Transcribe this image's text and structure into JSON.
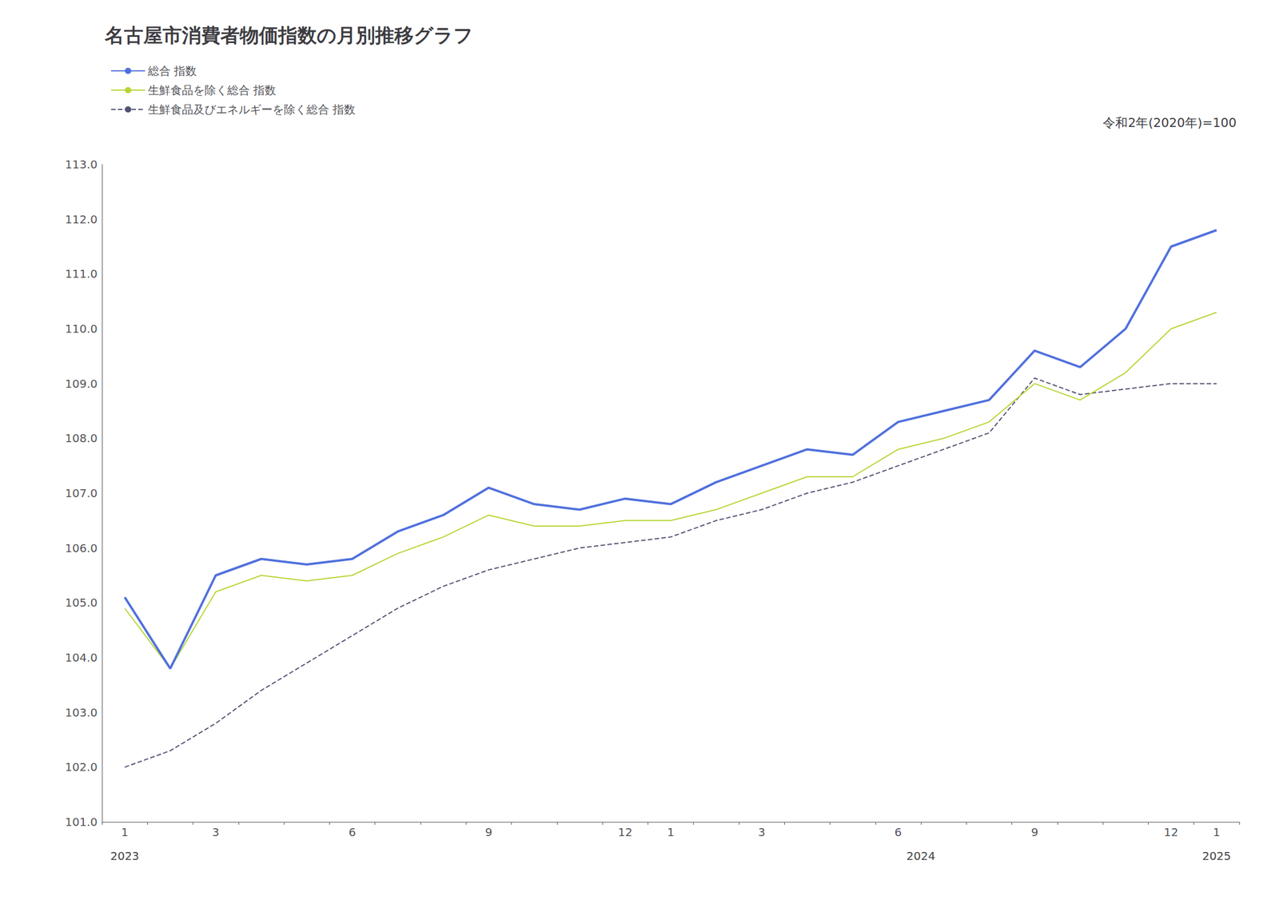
{
  "chart_data": {
    "type": "line",
    "title": "名古屋市消費者物価指数の月別推移グラフ",
    "subtitle": "令和2年(2020年)=100",
    "categories": [
      "1",
      null,
      "3",
      null,
      null,
      "6",
      null,
      null,
      "9",
      null,
      null,
      "12",
      "1",
      null,
      "3",
      null,
      null,
      "6",
      null,
      null,
      "9",
      null,
      null,
      "12",
      "1"
    ],
    "series": [
      {
        "name": "総合 指数",
        "line_style": "solid",
        "values": [
          105.1,
          103.8,
          105.5,
          105.8,
          105.7,
          105.8,
          106.3,
          106.6,
          107.1,
          106.8,
          106.7,
          106.9,
          106.8,
          107.2,
          107.5,
          107.8,
          107.7,
          108.3,
          108.5,
          108.7,
          109.6,
          109.3,
          110.0,
          111.5,
          111.8
        ]
      },
      {
        "name": "生鮮食品を除く総合 指数",
        "line_style": "solid",
        "values": [
          104.9,
          103.8,
          105.2,
          105.5,
          105.4,
          105.5,
          105.9,
          106.2,
          106.6,
          106.4,
          106.4,
          106.5,
          106.5,
          106.7,
          107.0,
          107.3,
          107.3,
          107.8,
          108.0,
          108.3,
          109.0,
          108.7,
          109.2,
          110.0,
          110.3
        ]
      },
      {
        "name": "生鮮食品及びエネルギーを除く総合 指数",
        "line_style": "dashed",
        "values": [
          102.0,
          102.3,
          102.8,
          103.4,
          103.9,
          104.4,
          104.9,
          105.3,
          105.6,
          105.8,
          106.0,
          106.1,
          106.2,
          106.5,
          106.7,
          107.0,
          107.2,
          107.5,
          107.8,
          108.1,
          109.1,
          108.8,
          108.9,
          109.0,
          109.0
        ]
      }
    ],
    "ylim": [
      101.0,
      113.0
    ],
    "yticks": [
      {
        "value": 101,
        "label": "101.0"
      },
      {
        "value": 102,
        "label": "102.0"
      },
      {
        "value": 103,
        "label": "103.0"
      },
      {
        "value": 104,
        "label": "104.0"
      },
      {
        "value": 105,
        "label": "105.0"
      },
      {
        "value": 106,
        "label": "106.0"
      },
      {
        "value": 107,
        "label": "107.0"
      },
      {
        "value": 108,
        "label": "108.0"
      },
      {
        "value": 109,
        "label": "109.0"
      },
      {
        "value": 110,
        "label": "110.0"
      },
      {
        "value": 111,
        "label": "111.0"
      },
      {
        "value": 112,
        "label": "112.0"
      },
      {
        "value": 113,
        "label": "113.0"
      }
    ],
    "annotations": [
      {
        "text": "2023",
        "x": 0
      },
      {
        "text": "2024",
        "x": 17.5
      },
      {
        "text": "2025",
        "x": 24
      }
    ],
    "grid": false,
    "legend": "upper left"
  }
}
